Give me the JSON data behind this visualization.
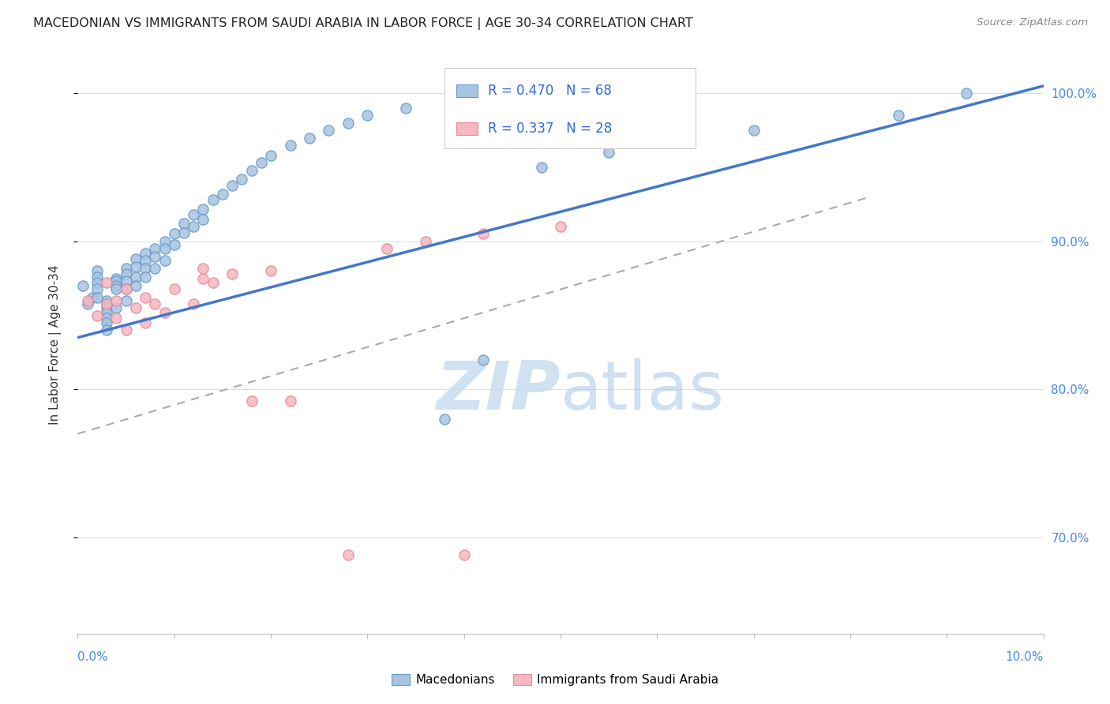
{
  "title": "MACEDONIAN VS IMMIGRANTS FROM SAUDI ARABIA IN LABOR FORCE | AGE 30-34 CORRELATION CHART",
  "source": "Source: ZipAtlas.com",
  "ylabel": "In Labor Force | Age 30-34",
  "right_yticks": [
    0.7,
    0.8,
    0.9,
    1.0
  ],
  "right_yticklabels": [
    "70.0%",
    "80.0%",
    "90.0%",
    "100.0%"
  ],
  "xmin": 0.0,
  "xmax": 0.1,
  "ymin": 0.635,
  "ymax": 1.025,
  "macedonian_R": 0.47,
  "macedonian_N": 68,
  "saudi_R": 0.337,
  "saudi_N": 28,
  "blue_fill": "#A8C4E0",
  "blue_edge": "#6699CC",
  "pink_fill": "#F4B8C0",
  "pink_edge": "#E88898",
  "blue_line": "#4477CC",
  "pink_line": "#EE99AA",
  "legend_text_color": "#3366DD",
  "mac_line_y0": 0.835,
  "mac_line_y1": 1.005,
  "sau_line_y0": 0.77,
  "sau_line_y1": 0.93,
  "sau_line_x1": 0.082,
  "macedonians_x": [
    0.0005,
    0.001,
    0.0015,
    0.002,
    0.002,
    0.002,
    0.002,
    0.002,
    0.003,
    0.003,
    0.003,
    0.003,
    0.003,
    0.003,
    0.003,
    0.004,
    0.004,
    0.004,
    0.004,
    0.004,
    0.005,
    0.005,
    0.005,
    0.005,
    0.005,
    0.006,
    0.006,
    0.006,
    0.006,
    0.007,
    0.007,
    0.007,
    0.007,
    0.008,
    0.008,
    0.008,
    0.009,
    0.009,
    0.009,
    0.01,
    0.01,
    0.011,
    0.011,
    0.012,
    0.012,
    0.013,
    0.013,
    0.014,
    0.015,
    0.016,
    0.017,
    0.018,
    0.019,
    0.02,
    0.022,
    0.024,
    0.026,
    0.028,
    0.03,
    0.034,
    0.038,
    0.042,
    0.048,
    0.055,
    0.06,
    0.07,
    0.085,
    0.092
  ],
  "macedonians_y": [
    0.87,
    0.858,
    0.862,
    0.88,
    0.876,
    0.872,
    0.868,
    0.862,
    0.86,
    0.858,
    0.855,
    0.852,
    0.848,
    0.845,
    0.84,
    0.875,
    0.873,
    0.87,
    0.868,
    0.855,
    0.882,
    0.878,
    0.873,
    0.868,
    0.86,
    0.888,
    0.883,
    0.876,
    0.87,
    0.892,
    0.887,
    0.882,
    0.876,
    0.895,
    0.89,
    0.882,
    0.9,
    0.895,
    0.887,
    0.905,
    0.898,
    0.912,
    0.906,
    0.918,
    0.91,
    0.922,
    0.915,
    0.928,
    0.932,
    0.938,
    0.942,
    0.948,
    0.953,
    0.958,
    0.965,
    0.97,
    0.975,
    0.98,
    0.985,
    0.99,
    0.78,
    0.82,
    0.95,
    0.96,
    0.97,
    0.975,
    0.985,
    1.0
  ],
  "saudi_x": [
    0.001,
    0.002,
    0.003,
    0.003,
    0.004,
    0.004,
    0.005,
    0.005,
    0.006,
    0.007,
    0.007,
    0.008,
    0.009,
    0.01,
    0.012,
    0.013,
    0.013,
    0.014,
    0.016,
    0.018,
    0.02,
    0.022,
    0.028,
    0.032,
    0.036,
    0.04,
    0.042,
    0.05
  ],
  "saudi_y": [
    0.86,
    0.85,
    0.872,
    0.858,
    0.86,
    0.848,
    0.868,
    0.84,
    0.855,
    0.862,
    0.845,
    0.858,
    0.852,
    0.868,
    0.858,
    0.882,
    0.875,
    0.872,
    0.878,
    0.792,
    0.88,
    0.792,
    0.688,
    0.895,
    0.9,
    0.688,
    0.905,
    0.91
  ],
  "background_color": "#FFFFFF",
  "grid_color": "#DDDDDD",
  "title_fontsize": 11.5,
  "source_fontsize": 9.5
}
